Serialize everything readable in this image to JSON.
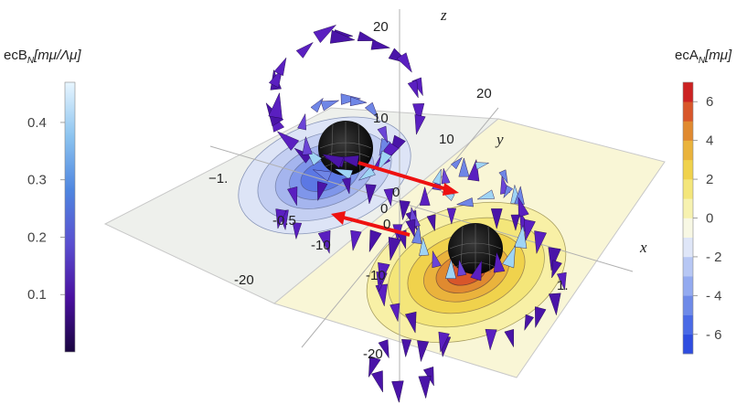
{
  "axes": {
    "x_label": "x",
    "y_label": "y",
    "z_label": "z",
    "z_ticks": [
      "20",
      "10",
      "0",
      "-10",
      "-20"
    ],
    "y_ticks": [
      "20",
      "10",
      "0",
      "-10",
      "-20"
    ],
    "x_ticks": [
      "−1.",
      "-0.5",
      "0",
      "1."
    ]
  },
  "colorbar_left": {
    "title_prefix": "ecB",
    "title_sub": "N",
    "title_bracket": "[mμ/Λμ]",
    "ticks": [
      "0.4",
      "0.3",
      "0.2",
      "0.1"
    ],
    "tick_values": [
      0.4,
      0.3,
      0.2,
      0.1
    ],
    "range": [
      0.0,
      0.47
    ],
    "colors": [
      "#1a0640",
      "#4a10a0",
      "#5a4fd0",
      "#4f86e0",
      "#8cc4f0",
      "#e8f6ff"
    ]
  },
  "colorbar_right": {
    "title_prefix": "ecA",
    "title_sub": "N",
    "title_bracket": "[mμ]",
    "ticks": [
      "6",
      "4",
      "2",
      "0",
      "- 2",
      "- 4",
      "- 6"
    ],
    "tick_values": [
      6,
      4,
      2,
      0,
      -2,
      -4,
      -6
    ],
    "range": [
      -7,
      7
    ],
    "band_colors": [
      "#2f4de0",
      "#4a6ae6",
      "#6e8ae8",
      "#93aaf0",
      "#b7c7f4",
      "#dfe6f8",
      "#f8f8e4",
      "#f7f2b0",
      "#f4e67a",
      "#f0d24c",
      "#eab33c",
      "#e08a30",
      "#d8562a",
      "#cc2222"
    ]
  },
  "colors": {
    "arrow_purple": "#4a14a8",
    "arrow_light": "#9fd4f4",
    "red_arrow": "#ee1111",
    "blob": "#111111",
    "plane_left": "#eef0ee",
    "plane_right": "#f8f6d8"
  }
}
